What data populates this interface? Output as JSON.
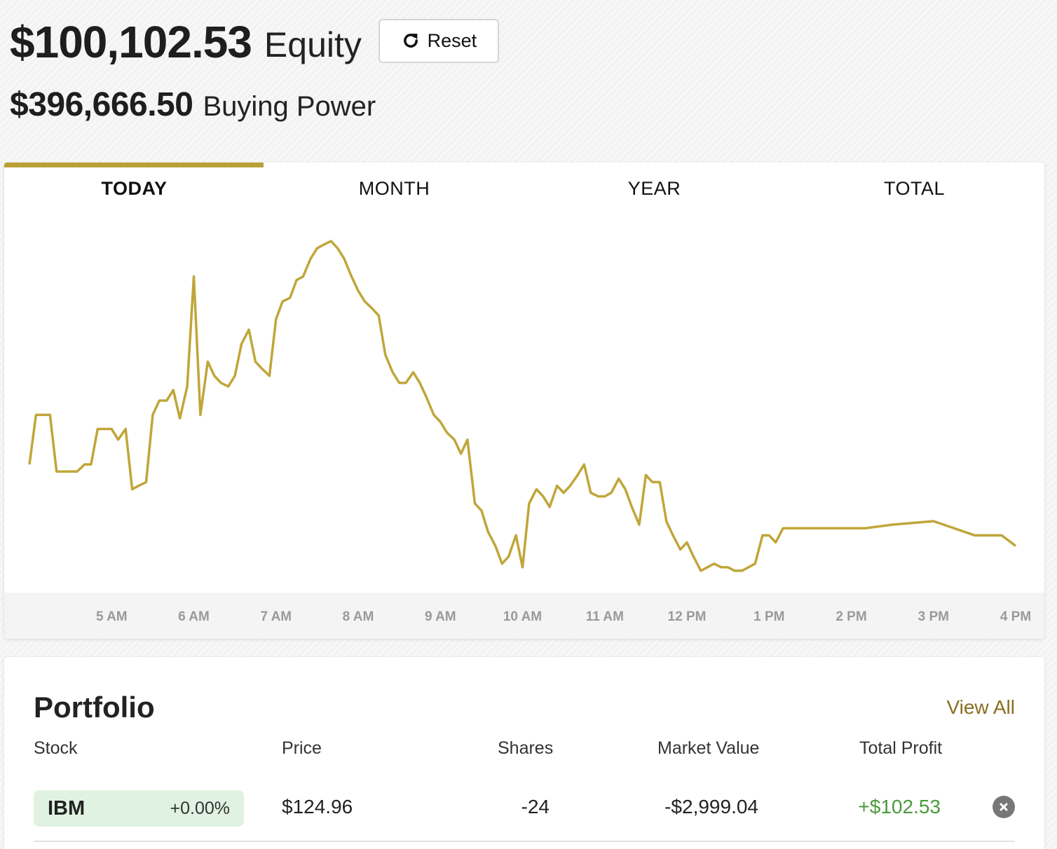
{
  "summary": {
    "equity_amount": "$100,102.53",
    "equity_label": "Equity",
    "reset_label": "Reset",
    "buying_power_amount": "$396,666.50",
    "buying_power_label": "Buying Power"
  },
  "tabs": [
    "TODAY",
    "MONTH",
    "YEAR",
    "TOTAL"
  ],
  "active_tab": "TODAY",
  "colors": {
    "accent": "#b9a034",
    "line": "#c0a63a",
    "profit": "#4a9a3c",
    "link": "#8a6d1f",
    "pill": "#e0f3e2"
  },
  "chart_data": {
    "type": "line",
    "title": "",
    "xlabel": "",
    "ylabel": "",
    "x_ticks": [
      "5 AM",
      "6 AM",
      "7 AM",
      "8 AM",
      "9 AM",
      "10 AM",
      "11 AM",
      "12 PM",
      "1 PM",
      "2 PM",
      "3 PM",
      "4 PM"
    ],
    "x_range": [
      4.0,
      16.0
    ],
    "ylim": [
      0,
      100
    ],
    "grid": false,
    "series": [
      {
        "name": "Equity",
        "x": [
          4.0,
          4.08,
          4.17,
          4.25,
          4.33,
          4.42,
          4.5,
          4.58,
          4.67,
          4.75,
          4.83,
          4.92,
          5.0,
          5.08,
          5.17,
          5.25,
          5.33,
          5.42,
          5.5,
          5.58,
          5.67,
          5.75,
          5.83,
          5.92,
          6.0,
          6.08,
          6.17,
          6.25,
          6.33,
          6.42,
          6.5,
          6.58,
          6.67,
          6.75,
          6.83,
          6.92,
          7.0,
          7.08,
          7.17,
          7.25,
          7.33,
          7.42,
          7.5,
          7.58,
          7.67,
          7.75,
          7.83,
          7.92,
          8.0,
          8.08,
          8.17,
          8.25,
          8.33,
          8.42,
          8.5,
          8.58,
          8.67,
          8.75,
          8.83,
          8.92,
          9.0,
          9.08,
          9.17,
          9.25,
          9.33,
          9.42,
          9.5,
          9.58,
          9.67,
          9.75,
          9.83,
          9.92,
          10.0,
          10.08,
          10.17,
          10.25,
          10.33,
          10.42,
          10.5,
          10.58,
          10.67,
          10.75,
          10.83,
          10.92,
          11.0,
          11.08,
          11.17,
          11.25,
          11.33,
          11.42,
          11.5,
          11.58,
          11.67,
          11.75,
          11.83,
          11.92,
          12.0,
          12.08,
          12.17,
          12.25,
          12.33,
          12.42,
          12.5,
          12.58,
          12.67,
          12.75,
          12.83,
          12.92,
          13.0,
          13.08,
          13.17,
          13.25,
          13.33,
          13.42,
          13.5,
          13.58,
          13.67,
          13.75,
          13.83,
          13.92,
          14.0,
          14.17,
          14.5,
          15.0,
          15.5,
          15.83,
          16.0
        ],
        "values": [
          33,
          47,
          47,
          47,
          31,
          31,
          31,
          31,
          33,
          33,
          43,
          43,
          43,
          40,
          43,
          26,
          27,
          28,
          47,
          51,
          51,
          54,
          46,
          55,
          86,
          47,
          62,
          58,
          56,
          55,
          58,
          67,
          71,
          62,
          60,
          58,
          74,
          79,
          80,
          85,
          86,
          91,
          94,
          95,
          96,
          94,
          91,
          86,
          82,
          79,
          77,
          75,
          64,
          59,
          56,
          56,
          59,
          56,
          52,
          47,
          45,
          42,
          40,
          36,
          40,
          22,
          20,
          14,
          10,
          5,
          7,
          13,
          4,
          22,
          26,
          24,
          21,
          27,
          25,
          27,
          30,
          33,
          25,
          24,
          24,
          25,
          29,
          26,
          21,
          16,
          30,
          28,
          28,
          17,
          13,
          9,
          11,
          7,
          3,
          4,
          5,
          4,
          4,
          3,
          3,
          4,
          5,
          13,
          13,
          11,
          15,
          15,
          15,
          15,
          15,
          15,
          15,
          15,
          15,
          15,
          15,
          15,
          16,
          17,
          13,
          13,
          10
        ]
      }
    ]
  },
  "portfolio": {
    "title": "Portfolio",
    "view_all": "View All",
    "columns": [
      "Stock",
      "Price",
      "Shares",
      "Market Value",
      "Total Profit"
    ],
    "rows": [
      {
        "symbol": "IBM",
        "change": "+0.00%",
        "price": "$124.96",
        "shares": "-24",
        "market_value": "-$2,999.04",
        "total_profit": "+$102.53"
      }
    ]
  }
}
